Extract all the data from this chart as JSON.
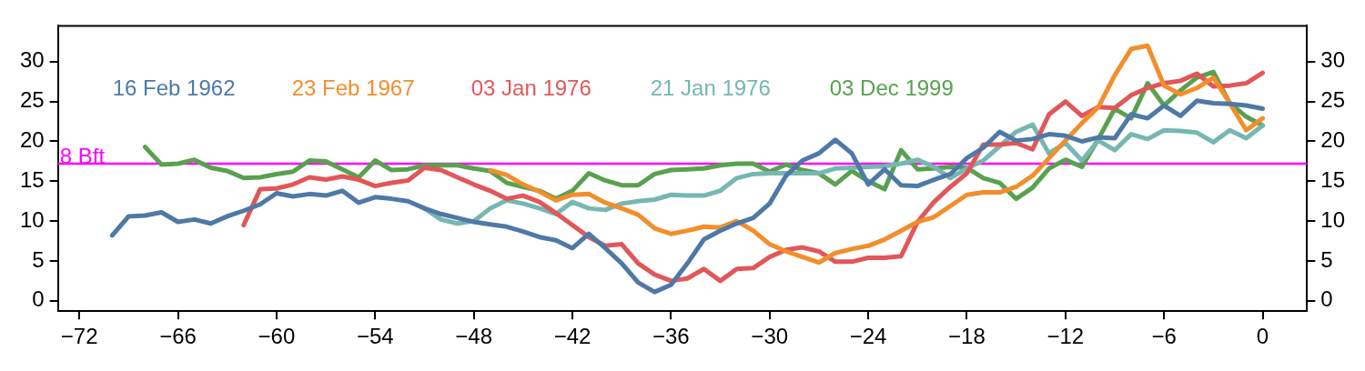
{
  "chart_data": {
    "type": "line",
    "x": [
      -70,
      -69,
      -68,
      -67,
      -66,
      -65,
      -64,
      -63,
      -62,
      -61,
      -60,
      -59,
      -58,
      -57,
      -56,
      -55,
      -54,
      -53,
      -52,
      -51,
      -50,
      -49,
      -48,
      -47,
      -46,
      -45,
      -44,
      -43,
      -42,
      -41,
      -40,
      -39,
      -38,
      -37,
      -36,
      -35,
      -34,
      -33,
      -32,
      -31,
      -30,
      -29,
      -28,
      -27,
      -26,
      -25,
      -24,
      -23,
      -22,
      -21,
      -20,
      -19,
      -18,
      -17,
      -16,
      -15,
      -14,
      -13,
      -12,
      -11,
      -10,
      -9,
      -8,
      -7,
      -6,
      -5,
      -4,
      -3,
      -2,
      -1,
      0
    ],
    "series": [
      {
        "name": "16 Feb 1962",
        "color": "#4e79a7",
        "values": [
          8.2,
          10.6,
          10.7,
          11.1,
          9.9,
          10.2,
          9.7,
          10.6,
          11.3,
          12.1,
          13.5,
          13.1,
          13.4,
          13.2,
          13.8,
          12.3,
          13.0,
          12.8,
          12.5,
          11.6,
          10.9,
          10.4,
          9.9,
          9.6,
          9.3,
          8.7,
          8.0,
          7.6,
          6.6,
          8.4,
          6.6,
          4.7,
          2.3,
          1.1,
          2.0,
          4.7,
          7.7,
          8.8,
          9.7,
          10.4,
          12.2,
          15.7,
          17.6,
          18.5,
          20.2,
          18.5,
          14.6,
          16.5,
          14.5,
          14.4,
          15.2,
          15.9,
          17.9,
          19.2,
          21.2,
          20.1,
          20.3,
          20.9,
          20.7,
          20.0,
          20.5,
          20.4,
          23.4,
          22.9,
          24.5,
          23.2,
          25.1,
          24.8,
          24.7,
          24.5,
          24.1
        ]
      },
      {
        "name": "23 Feb 1967",
        "color": "#f28e2b",
        "values": [
          null,
          null,
          null,
          null,
          null,
          null,
          null,
          null,
          null,
          null,
          null,
          null,
          null,
          null,
          null,
          null,
          null,
          null,
          null,
          null,
          null,
          null,
          null,
          16.4,
          15.8,
          14.6,
          13.7,
          12.6,
          13.3,
          13.4,
          12.3,
          11.6,
          10.8,
          9.1,
          8.4,
          8.8,
          9.3,
          9.2,
          10.0,
          8.8,
          7.1,
          6.2,
          5.5,
          4.8,
          6.0,
          6.5,
          6.9,
          7.7,
          8.8,
          9.9,
          10.5,
          11.9,
          13.3,
          13.6,
          13.6,
          14.3,
          15.7,
          17.9,
          20.1,
          22.3,
          24.3,
          28.3,
          31.6,
          32.0,
          27.0,
          25.9,
          26.7,
          28.0,
          24.8,
          21.4,
          22.9
        ]
      },
      {
        "name": "03 Jan 1976",
        "color": "#e15759",
        "values": [
          null,
          null,
          null,
          null,
          null,
          null,
          null,
          null,
          9.5,
          14.0,
          14.1,
          14.6,
          15.5,
          15.2,
          15.6,
          15.2,
          14.4,
          14.8,
          15.1,
          16.7,
          16.4,
          15.5,
          14.6,
          13.8,
          12.8,
          13.2,
          12.4,
          11.0,
          9.5,
          8.0,
          6.9,
          7.1,
          4.7,
          3.3,
          2.5,
          2.8,
          4.0,
          2.5,
          4.0,
          4.1,
          5.5,
          6.4,
          6.7,
          6.2,
          4.9,
          4.9,
          5.4,
          5.4,
          5.6,
          9.9,
          12.4,
          14.3,
          16.0,
          19.6,
          19.6,
          19.8,
          19.0,
          23.4,
          25.0,
          23.2,
          24.3,
          24.2,
          25.8,
          26.7,
          27.3,
          27.6,
          28.5,
          26.9,
          27.0,
          27.3,
          28.6
        ]
      },
      {
        "name": "21 Jan 1976",
        "color": "#76b7b2",
        "values": [
          null,
          null,
          null,
          null,
          null,
          null,
          null,
          null,
          null,
          null,
          null,
          null,
          null,
          null,
          null,
          null,
          null,
          null,
          null,
          11.6,
          10.2,
          9.7,
          10.0,
          11.6,
          12.6,
          12.2,
          11.6,
          10.9,
          12.4,
          11.6,
          11.4,
          12.2,
          12.5,
          12.7,
          13.3,
          13.2,
          13.2,
          13.8,
          15.4,
          15.9,
          16.0,
          16.0,
          16.0,
          16.0,
          16.6,
          16.7,
          16.8,
          16.9,
          17.2,
          17.7,
          16.8,
          15.4,
          16.6,
          17.6,
          19.4,
          21.2,
          22.1,
          18.5,
          19.8,
          17.6,
          20.1,
          18.9,
          20.9,
          20.3,
          21.4,
          21.3,
          21.1,
          19.9,
          21.4,
          20.4,
          22.0
        ]
      },
      {
        "name": "03 Dec 1999",
        "color": "#59a14f",
        "values": [
          null,
          null,
          19.3,
          17.1,
          17.2,
          17.7,
          16.7,
          16.3,
          15.4,
          15.5,
          15.9,
          16.2,
          17.6,
          17.5,
          16.5,
          15.5,
          17.6,
          16.4,
          16.5,
          17.0,
          17.0,
          17.0,
          16.6,
          16.3,
          14.8,
          14.3,
          13.8,
          12.8,
          13.8,
          16.0,
          15.1,
          14.5,
          14.5,
          15.9,
          16.4,
          16.5,
          16.6,
          17.0,
          17.2,
          17.2,
          16.2,
          17.1,
          16.4,
          16.0,
          14.6,
          16.3,
          15.0,
          14.0,
          18.9,
          16.5,
          16.6,
          16.8,
          16.7,
          15.4,
          14.8,
          12.8,
          14.2,
          16.6,
          17.7,
          16.8,
          20.3,
          24.1,
          22.9,
          27.3,
          24.5,
          26.4,
          28.0,
          28.7,
          24.8,
          23.1,
          22.0
        ]
      }
    ],
    "xlim": [
      -73.3,
      2.7
    ],
    "xticks": [
      {
        "value": -72,
        "label": "−72"
      },
      {
        "value": -66,
        "label": "−66"
      },
      {
        "value": -60,
        "label": "−60"
      },
      {
        "value": -54,
        "label": "−54"
      },
      {
        "value": -48,
        "label": "−48"
      },
      {
        "value": -42,
        "label": "−42"
      },
      {
        "value": -36,
        "label": "−36"
      },
      {
        "value": -30,
        "label": "−30"
      },
      {
        "value": -24,
        "label": "−24"
      },
      {
        "value": -18,
        "label": "−18"
      },
      {
        "value": -12,
        "label": "−12"
      },
      {
        "value": -6,
        "label": "−6"
      },
      0
    ],
    "ylim": [
      -1.3,
      34.5
    ],
    "yticks": [
      0,
      5,
      10,
      15,
      20,
      25,
      30
    ],
    "y2lim": [
      -1.3,
      34.5
    ],
    "y2ticks": [
      0,
      5,
      10,
      15,
      20,
      25,
      30
    ],
    "ref_lines": [
      {
        "axis": "y",
        "value": 17.2,
        "label": "8 Bft",
        "color": "#ff00ff"
      }
    ],
    "grid": false,
    "legend": "top",
    "marker": "none",
    "line_style": "solid"
  }
}
